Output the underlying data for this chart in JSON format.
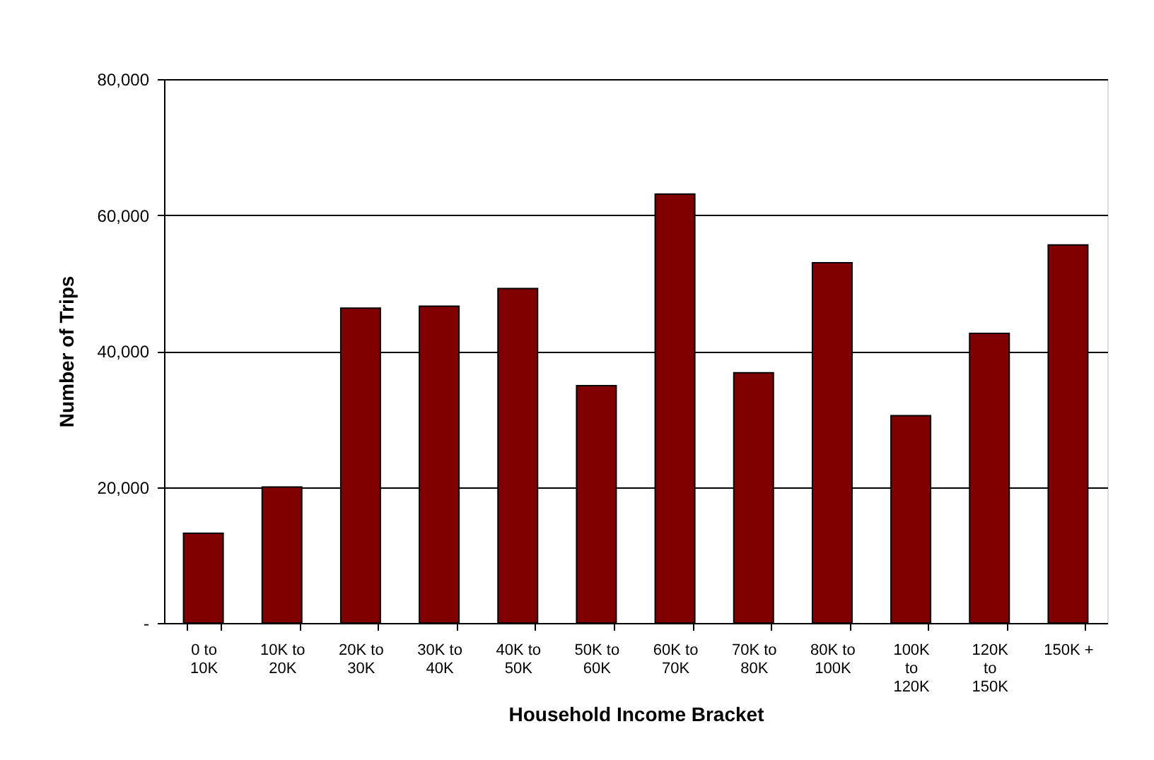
{
  "chart_data": {
    "type": "bar",
    "xlabel": "Household Income Bracket",
    "ylabel": "Number of Trips",
    "categories": [
      "0 to 10K",
      "10K to 20K",
      "20K to 30K",
      "30K to 40K",
      "40K to 50K",
      "50K to 60K",
      "60K to 70K",
      "70K to 80K",
      "80K to 100K",
      "100K to 120K",
      "120K to 150K",
      "150K +"
    ],
    "values": [
      13200,
      20000,
      46300,
      46600,
      49200,
      34900,
      63100,
      36800,
      53000,
      30500,
      42600,
      55600
    ],
    "color": "#800000",
    "ylim": [
      0,
      80000
    ],
    "yticks": [
      {
        "value": 0,
        "label": "-"
      },
      {
        "value": 20000,
        "label": "20,000"
      },
      {
        "value": 40000,
        "label": "40,000"
      },
      {
        "value": 60000,
        "label": "60,000"
      },
      {
        "value": 80000,
        "label": "80,000"
      }
    ],
    "grid": "y"
  }
}
